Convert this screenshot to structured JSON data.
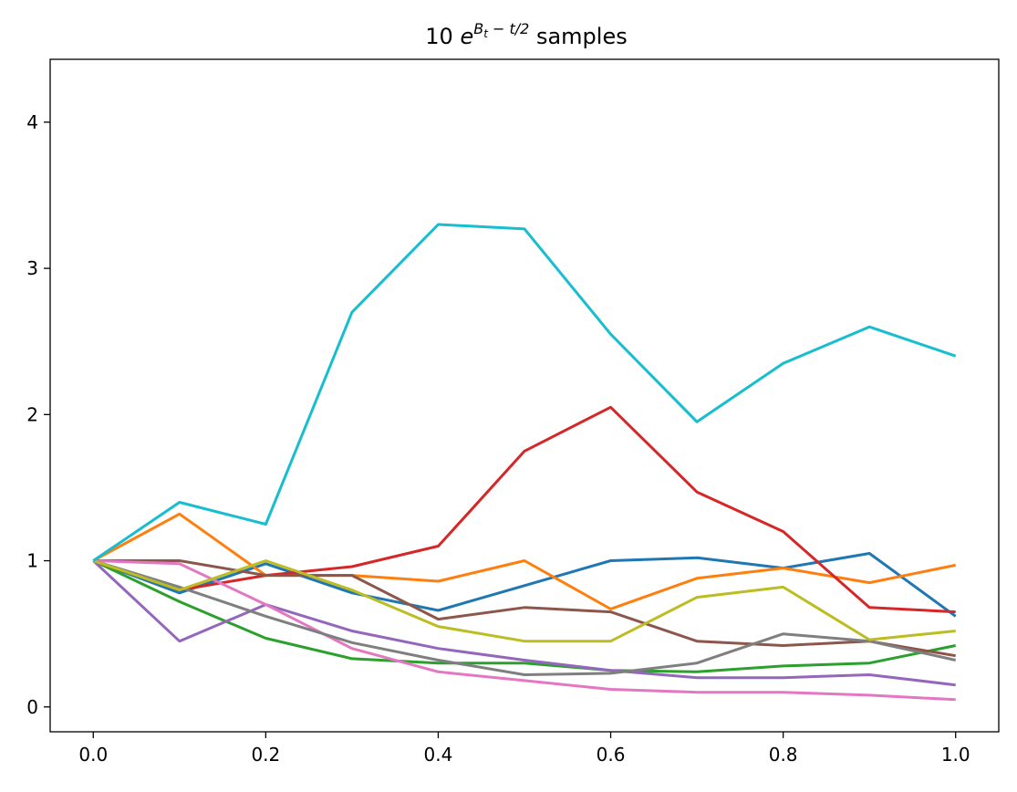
{
  "chart_data": {
    "type": "line",
    "title": {
      "prefix": "10 ",
      "base": "e",
      "exp_main": "B",
      "exp_sub": "t",
      "exp_rest": " − t/2",
      "suffix": " samples"
    },
    "xlabel": "",
    "ylabel": "",
    "xlim": [
      -0.05,
      1.05
    ],
    "ylim": [
      -0.17,
      4.43
    ],
    "xticks": [
      0.0,
      0.2,
      0.4,
      0.6,
      0.8,
      1.0
    ],
    "xtick_labels": [
      "0.0",
      "0.2",
      "0.4",
      "0.6",
      "0.8",
      "1.0"
    ],
    "yticks": [
      0,
      1,
      2,
      3,
      4
    ],
    "ytick_labels": [
      "0",
      "1",
      "2",
      "3",
      "4"
    ],
    "grid": false,
    "legend": "none",
    "x": [
      0.0,
      0.1,
      0.2,
      0.3,
      0.4,
      0.5,
      0.6,
      0.7,
      0.8,
      0.9,
      1.0
    ],
    "series": [
      {
        "color": "#1f77b4",
        "values": [
          1.0,
          0.78,
          0.98,
          0.78,
          0.66,
          0.83,
          1.0,
          1.02,
          0.95,
          1.05,
          0.62
        ]
      },
      {
        "color": "#ff7f0e",
        "values": [
          1.0,
          1.32,
          0.9,
          0.9,
          0.86,
          1.0,
          0.67,
          0.88,
          0.95,
          0.85,
          0.97
        ]
      },
      {
        "color": "#2ca02c",
        "values": [
          1.0,
          0.72,
          0.47,
          0.33,
          0.3,
          0.3,
          0.25,
          0.24,
          0.28,
          0.3,
          0.42
        ]
      },
      {
        "color": "#d62728",
        "values": [
          1.0,
          0.8,
          0.9,
          0.96,
          1.1,
          1.75,
          2.05,
          1.47,
          1.2,
          0.68,
          0.65
        ]
      },
      {
        "color": "#9467bd",
        "values": [
          1.0,
          0.45,
          0.7,
          0.52,
          0.4,
          0.32,
          0.25,
          0.2,
          0.2,
          0.22,
          0.15
        ]
      },
      {
        "color": "#8c564b",
        "values": [
          1.0,
          1.0,
          0.9,
          0.9,
          0.6,
          0.68,
          0.65,
          0.45,
          0.42,
          0.45,
          0.35
        ]
      },
      {
        "color": "#e377c2",
        "values": [
          1.0,
          0.98,
          0.7,
          0.4,
          0.24,
          0.18,
          0.12,
          0.1,
          0.1,
          0.08,
          0.05
        ]
      },
      {
        "color": "#7f7f7f",
        "values": [
          1.0,
          0.82,
          0.62,
          0.44,
          0.32,
          0.22,
          0.23,
          0.3,
          0.5,
          0.45,
          0.32
        ]
      },
      {
        "color": "#bcbd22",
        "values": [
          1.0,
          0.8,
          1.0,
          0.8,
          0.55,
          0.45,
          0.45,
          0.75,
          0.82,
          0.46,
          0.52
        ]
      },
      {
        "color": "#17becf",
        "values": [
          1.0,
          1.4,
          1.25,
          2.7,
          3.3,
          3.27,
          2.55,
          1.95,
          2.35,
          2.6,
          2.4
        ]
      }
    ]
  }
}
